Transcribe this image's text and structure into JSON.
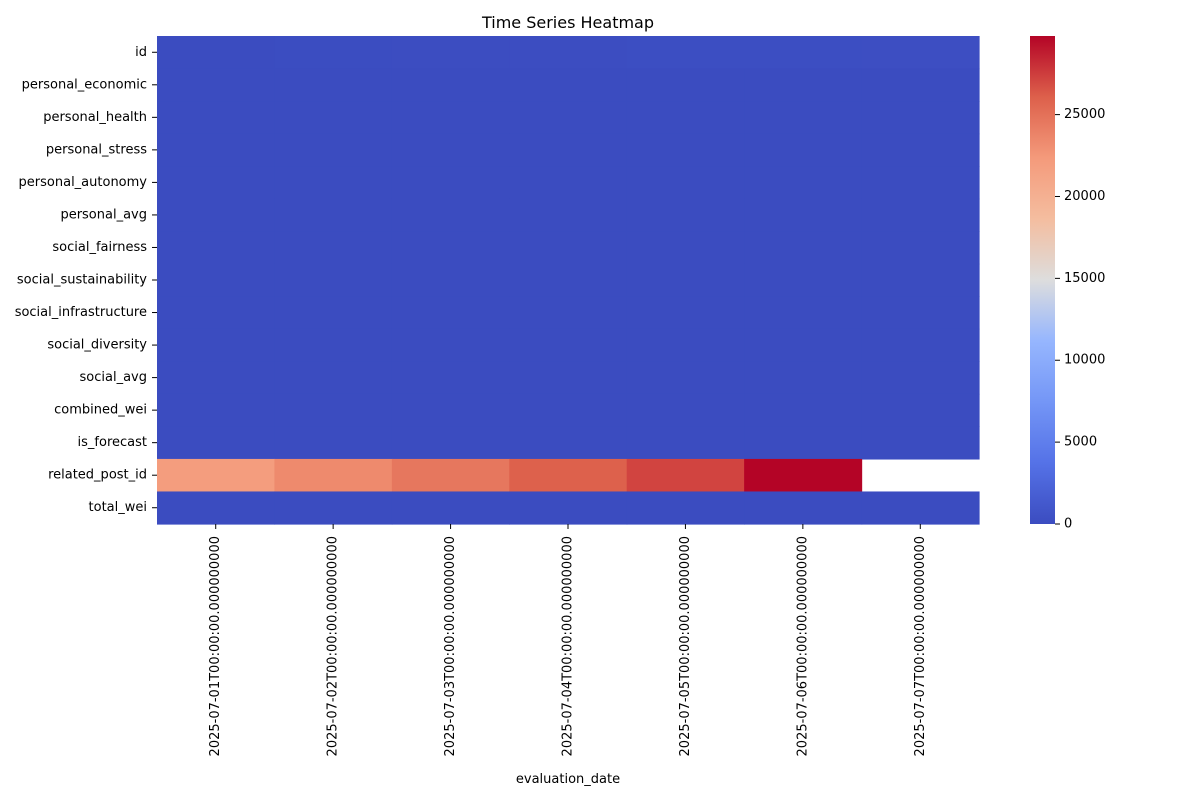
{
  "chart_data": {
    "type": "heatmap",
    "title": "Time Series Heatmap",
    "xlabel": "evaluation_date",
    "ylabel": "",
    "x_categories": [
      "2025-07-01T00:00:00.000000000",
      "2025-07-02T00:00:00.000000000",
      "2025-07-03T00:00:00.000000000",
      "2025-07-04T00:00:00.000000000",
      "2025-07-05T00:00:00.000000000",
      "2025-07-06T00:00:00.000000000",
      "2025-07-07T00:00:00.000000000"
    ],
    "y_categories": [
      "id",
      "personal_economic",
      "personal_health",
      "personal_stress",
      "personal_autonomy",
      "personal_avg",
      "social_fairness",
      "social_sustainability",
      "social_infrastructure",
      "social_diversity",
      "social_avg",
      "combined_wei",
      "is_forecast",
      "related_post_id",
      "total_wei"
    ],
    "values": [
      [
        18,
        52,
        86,
        120,
        154,
        188,
        222
      ],
      [
        0.6,
        0.6,
        0.6,
        0.6,
        0.6,
        0.6,
        0.6
      ],
      [
        0.6,
        0.6,
        0.6,
        0.6,
        0.6,
        0.6,
        0.6
      ],
      [
        0.5,
        0.5,
        0.5,
        0.5,
        0.5,
        0.5,
        0.5
      ],
      [
        0.6,
        0.6,
        0.6,
        0.6,
        0.6,
        0.6,
        0.6
      ],
      [
        0.6,
        0.6,
        0.6,
        0.6,
        0.6,
        0.6,
        0.6
      ],
      [
        0.6,
        0.6,
        0.6,
        0.6,
        0.6,
        0.6,
        0.6
      ],
      [
        0.6,
        0.6,
        0.6,
        0.6,
        0.6,
        0.6,
        0.6
      ],
      [
        0.6,
        0.6,
        0.6,
        0.6,
        0.6,
        0.6,
        0.6
      ],
      [
        0.6,
        0.6,
        0.6,
        0.6,
        0.6,
        0.6,
        0.6
      ],
      [
        0.6,
        0.6,
        0.6,
        0.6,
        0.6,
        0.6,
        0.6
      ],
      [
        0.6,
        0.6,
        0.6,
        0.6,
        0.6,
        0.6,
        0.6
      ],
      [
        0,
        0,
        0,
        0,
        0,
        0,
        0
      ],
      [
        22000,
        23400,
        24600,
        26000,
        27200,
        29800,
        null
      ],
      [
        8,
        8,
        8,
        8,
        8,
        8,
        8
      ]
    ],
    "colorbar": {
      "min": 0,
      "max": 29800,
      "ticks": [
        0,
        5000,
        10000,
        15000,
        20000,
        25000
      ]
    },
    "colormap": "coolwarm",
    "grid": false,
    "legend": "colorbar-right"
  }
}
